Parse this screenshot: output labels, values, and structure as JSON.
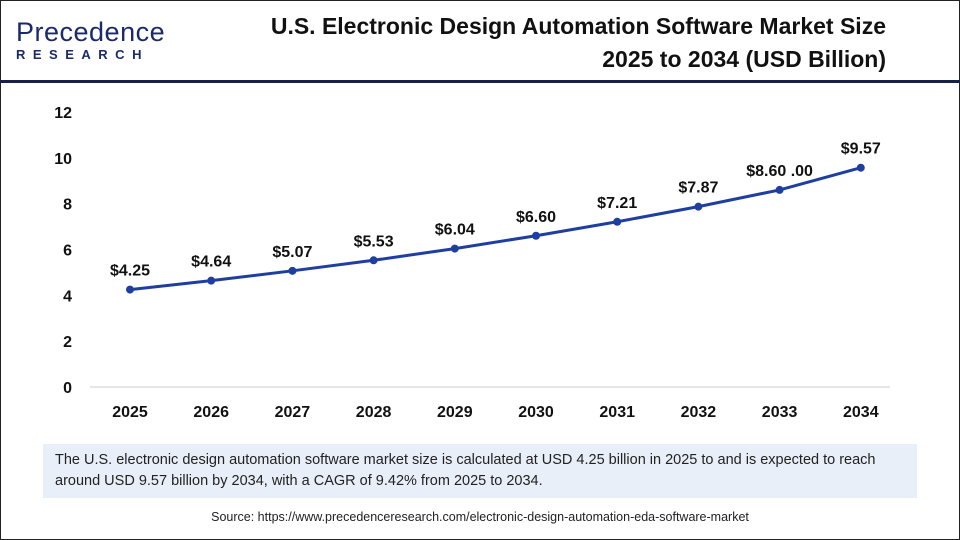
{
  "logo": {
    "line1": "Precedence",
    "line2": "RESEARCH"
  },
  "title_line1": "U.S. Electronic Design Automation Software Market Size",
  "title_line2": "2025 to 2034 (USD Billion)",
  "chart_data": {
    "type": "line",
    "title": "U.S. Electronic Design Automation Software Market Size 2025 to 2034 (USD Billion)",
    "categories": [
      "2025",
      "2026",
      "2027",
      "2028",
      "2029",
      "2030",
      "2031",
      "2032",
      "2033",
      "2034"
    ],
    "values": [
      4.25,
      4.64,
      5.07,
      5.53,
      6.04,
      6.6,
      7.21,
      7.87,
      8.6,
      9.57
    ],
    "data_labels": [
      "$4.25",
      "$4.64",
      "$5.07",
      "$5.53",
      "$6.04",
      "$6.60",
      "$7.21",
      "$7.87",
      "$8.60 .00",
      "$9.57"
    ],
    "ylim": [
      0,
      12
    ],
    "yticks": [
      "0",
      "2",
      "4",
      "6",
      "8",
      "10",
      "12"
    ],
    "grid": false,
    "line_color": "#1f3fa0"
  },
  "note": "The U.S. electronic design automation software market size is calculated at USD 4.25 billion in 2025 to and is expected to reach around USD 9.57 billion by 2034, with a CAGR of 9.42% from 2025 to 2034.",
  "source": "Source: https://www.precedenceresearch.com/electronic-design-automation-eda-software-market"
}
